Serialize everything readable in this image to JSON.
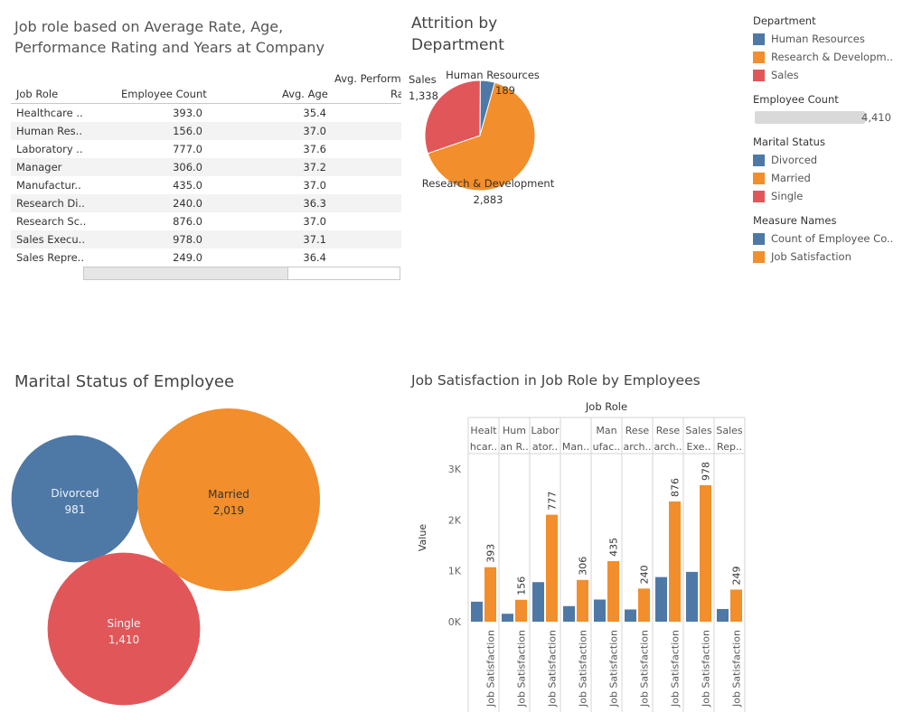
{
  "titles": {
    "table": "Job role based on Average Rate, Age, Performance Rating and Years at Company",
    "pie": "Attrition by Department",
    "bubble": "Marital Status of Employee",
    "bars": "Job Satisfaction in Job Role by Employees"
  },
  "table": {
    "header_top": "Avg. Perform",
    "header_top_wrap": "Ra",
    "columns": [
      "Job Role",
      "Employee Count",
      "Avg. Age"
    ],
    "rows": [
      {
        "role": "Healthcare ..",
        "count": "393.0",
        "age": "35.4"
      },
      {
        "role": "Human Res..",
        "count": "156.0",
        "age": "37.0"
      },
      {
        "role": "Laboratory ..",
        "count": "777.0",
        "age": "37.6"
      },
      {
        "role": "Manager",
        "count": "306.0",
        "age": "37.2"
      },
      {
        "role": "Manufactur..",
        "count": "435.0",
        "age": "37.0"
      },
      {
        "role": "Research Di..",
        "count": "240.0",
        "age": "36.3"
      },
      {
        "role": "Research Sc..",
        "count": "876.0",
        "age": "37.0"
      },
      {
        "role": "Sales Execu..",
        "count": "978.0",
        "age": "37.1"
      },
      {
        "role": "Sales Repre..",
        "count": "249.0",
        "age": "36.4"
      }
    ]
  },
  "legends": {
    "department": {
      "title": "Department",
      "items": [
        {
          "label": "Human Resources",
          "color": "#4e79a7"
        },
        {
          "label": "Research & Developm..",
          "color": "#f28e2b"
        },
        {
          "label": "Sales",
          "color": "#e15759"
        }
      ]
    },
    "employee_count": {
      "title": "Employee Count",
      "value": "4,410"
    },
    "marital": {
      "title": "Marital Status",
      "items": [
        {
          "label": "Divorced",
          "color": "#4e79a7"
        },
        {
          "label": "Married",
          "color": "#f28e2b"
        },
        {
          "label": "Single",
          "color": "#e15759"
        }
      ]
    },
    "measure": {
      "title": "Measure Names",
      "items": [
        {
          "label": "Count of Employee Co..",
          "color": "#4e79a7"
        },
        {
          "label": "Job Satisfaction",
          "color": "#f28e2b"
        }
      ]
    }
  },
  "chart_data": [
    {
      "type": "pie",
      "title": "Attrition by Department",
      "slices": [
        {
          "name": "Human Resources",
          "value": 189,
          "label": "189",
          "color": "#4e79a7"
        },
        {
          "name": "Research & Development",
          "value": 2883,
          "label": "2,883",
          "color": "#f28e2b"
        },
        {
          "name": "Sales",
          "value": 1338,
          "label": "1,338",
          "color": "#e15759"
        }
      ]
    },
    {
      "type": "bubble",
      "title": "Marital Status of Employee",
      "bubbles": [
        {
          "name": "Divorced",
          "value": 981,
          "label": "981",
          "color": "#4e79a7"
        },
        {
          "name": "Married",
          "value": 2019,
          "label": "2,019",
          "color": "#f28e2b"
        },
        {
          "name": "Single",
          "value": 1410,
          "label": "1,410",
          "color": "#e15759"
        }
      ]
    },
    {
      "type": "bar",
      "title": "Job Satisfaction in Job Role by Employees",
      "column_header": "Job Role",
      "ylabel": "Value",
      "ylim": [
        0,
        3300
      ],
      "yticks": [
        0,
        1000,
        2000,
        3000
      ],
      "ytick_labels": [
        "0K",
        "1K",
        "2K",
        "3K"
      ],
      "xtick_label": "Job Satisfaction",
      "categories": [
        {
          "line1": "Healt",
          "line2": "hcar.."
        },
        {
          "line1": "Hum",
          "line2": "an R.."
        },
        {
          "line1": "Labor",
          "line2": "ator.."
        },
        {
          "line1": "",
          "line2": "Man.."
        },
        {
          "line1": "Man",
          "line2": "ufac.."
        },
        {
          "line1": "Rese",
          "line2": "arch.."
        },
        {
          "line1": "Rese",
          "line2": "arch.."
        },
        {
          "line1": "Sales",
          "line2": "Exe.."
        },
        {
          "line1": "Sales",
          "line2": "Rep.."
        }
      ],
      "series": [
        {
          "name": "Count of Employee Co..",
          "color": "#4e79a7",
          "values": [
            393,
            156,
            777,
            306,
            435,
            240,
            876,
            978,
            249
          ]
        },
        {
          "name": "Job Satisfaction",
          "color": "#f28e2b",
          "values": [
            1070,
            430,
            2100,
            820,
            1190,
            650,
            2360,
            2680,
            630
          ],
          "labels": [
            "393",
            "156",
            "777",
            "306",
            "435",
            "240",
            "876",
            "978",
            "249"
          ]
        }
      ]
    }
  ]
}
